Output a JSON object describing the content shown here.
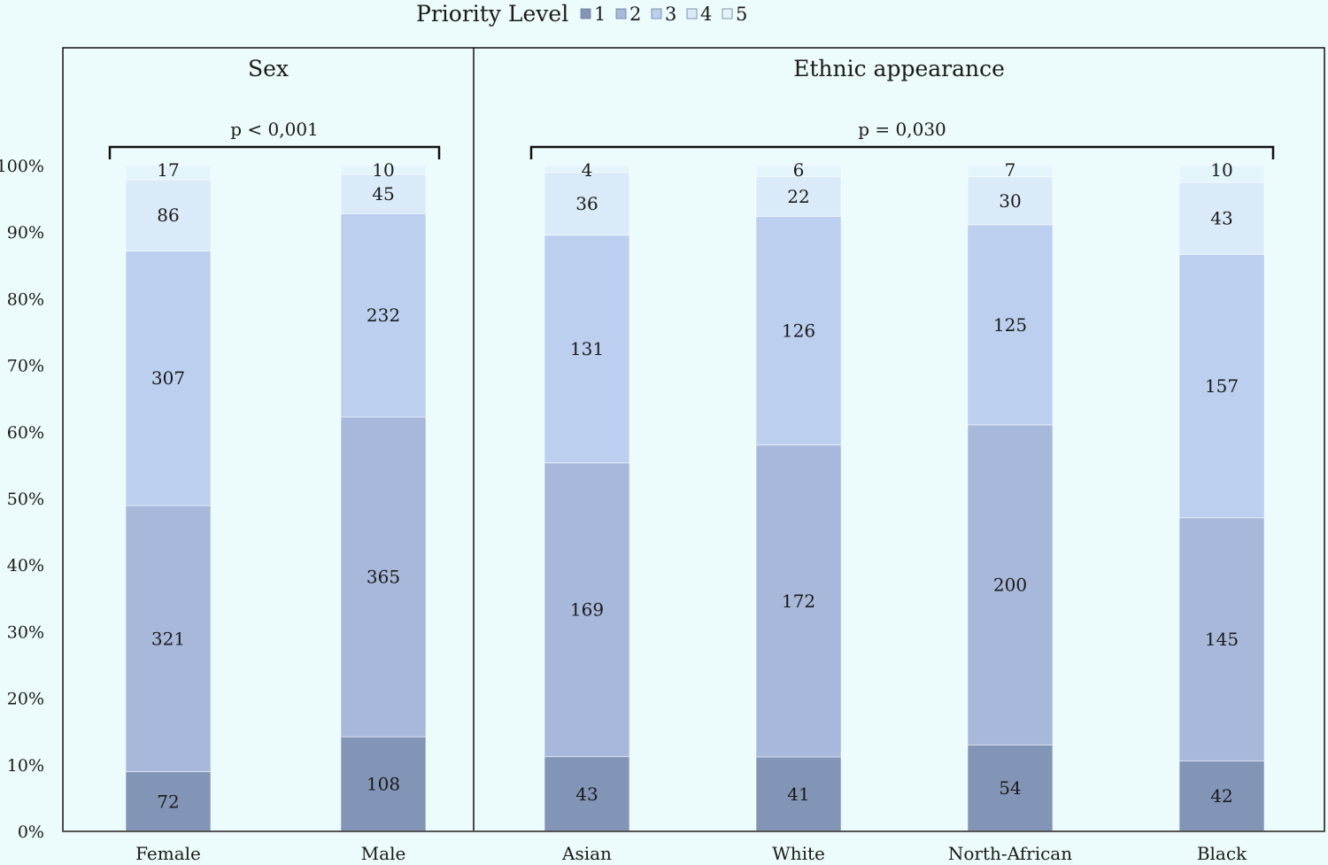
{
  "chart_data": {
    "type": "bar",
    "stacked": true,
    "normalized": true,
    "legend": {
      "title": "Priority Level",
      "placement": "top",
      "entries": [
        "1",
        "2",
        "3",
        "4",
        "5"
      ]
    },
    "colors": [
      "#8395b6",
      "#a7b8da",
      "#bccfef",
      "#daeaf9",
      "#e3f4fb"
    ],
    "y_ticks": [
      "0%",
      "10%",
      "20%",
      "30%",
      "40%",
      "50%",
      "60%",
      "70%",
      "80%",
      "90%",
      "100%"
    ],
    "ylim": [
      0,
      100
    ],
    "panels": [
      {
        "title": "Sex",
        "p_value": "p < 0,001",
        "categories": [
          "Female",
          "Male"
        ],
        "series": [
          {
            "name": "1",
            "values": [
              72,
              108
            ]
          },
          {
            "name": "2",
            "values": [
              321,
              365
            ]
          },
          {
            "name": "3",
            "values": [
              307,
              232
            ]
          },
          {
            "name": "4",
            "values": [
              86,
              45
            ]
          },
          {
            "name": "5",
            "values": [
              17,
              10
            ]
          }
        ]
      },
      {
        "title": "Ethnic appearance",
        "p_value": "p = 0,030",
        "categories": [
          "Asian",
          "White",
          "North-African",
          "Black"
        ],
        "series": [
          {
            "name": "1",
            "values": [
              43,
              41,
              54,
              42
            ]
          },
          {
            "name": "2",
            "values": [
              169,
              172,
              200,
              145
            ]
          },
          {
            "name": "3",
            "values": [
              131,
              126,
              125,
              157
            ]
          },
          {
            "name": "4",
            "values": [
              36,
              22,
              30,
              43
            ]
          },
          {
            "name": "5",
            "values": [
              4,
              6,
              7,
              10
            ]
          }
        ]
      }
    ]
  }
}
